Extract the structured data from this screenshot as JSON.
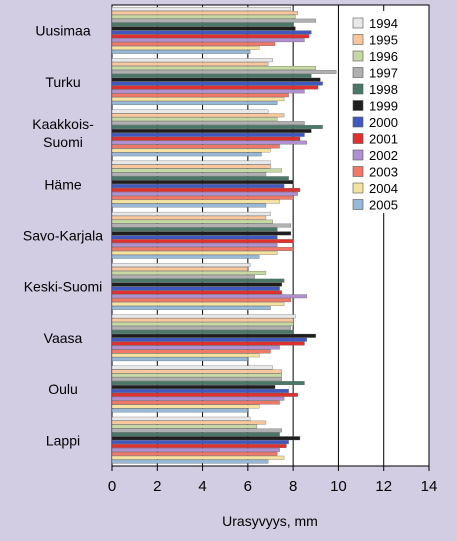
{
  "chart_data": {
    "type": "bar",
    "orientation": "horizontal",
    "title": "",
    "xlabel": "Urasyvyys, mm",
    "ylabel": "",
    "xlim": [
      0,
      14
    ],
    "xticks": [
      0,
      2,
      4,
      6,
      8,
      10,
      12,
      14
    ],
    "grid": "vertical",
    "legend_position": "right-inside",
    "categories": [
      "Uusimaa",
      "Turku",
      "Kaakkois-Suomi",
      "Häme",
      "Savo-Karjala",
      "Keski-Suomi",
      "Vaasa",
      "Oulu",
      "Lappi"
    ],
    "category_lines": [
      [
        "Uusimaa"
      ],
      [
        "Turku"
      ],
      [
        "Kaakkois-",
        "Suomi"
      ],
      [
        "Häme"
      ],
      [
        "Savo-Karjala"
      ],
      [
        "Keski-Suomi"
      ],
      [
        "Vaasa"
      ],
      [
        "Oulu"
      ],
      [
        "Lappi"
      ]
    ],
    "series": [
      {
        "name": "1994",
        "color": "#e8e8e8",
        "values": [
          7.9,
          7.1,
          6.9,
          7.0,
          7.0,
          6.1,
          8.1,
          7.1,
          6.1
        ]
      },
      {
        "name": "1995",
        "color": "#f9c79e",
        "values": [
          8.2,
          6.9,
          7.6,
          7.0,
          6.8,
          6.0,
          8.0,
          7.5,
          6.8
        ]
      },
      {
        "name": "1996",
        "color": "#c6d9a2",
        "values": [
          8.1,
          9.0,
          7.3,
          7.5,
          7.1,
          6.8,
          8.0,
          7.5,
          6.4
        ]
      },
      {
        "name": "1997",
        "color": "#b0b0b0",
        "values": [
          9.0,
          9.9,
          8.5,
          6.8,
          7.9,
          6.3,
          7.9,
          7.5,
          7.5
        ]
      },
      {
        "name": "1998",
        "color": "#4a7868",
        "values": [
          8.0,
          8.8,
          9.3,
          7.8,
          7.3,
          7.6,
          8.0,
          8.5,
          7.4
        ]
      },
      {
        "name": "1999",
        "color": "#1e1e1e",
        "values": [
          8.1,
          9.2,
          8.8,
          8.0,
          7.9,
          7.5,
          9.0,
          7.2,
          8.3
        ]
      },
      {
        "name": "2000",
        "color": "#4058c0",
        "values": [
          8.8,
          9.3,
          8.5,
          7.6,
          7.3,
          7.4,
          8.6,
          7.8,
          7.8
        ]
      },
      {
        "name": "2001",
        "color": "#e03030",
        "values": [
          8.7,
          9.1,
          8.3,
          8.3,
          8.0,
          7.5,
          8.5,
          8.2,
          7.7
        ]
      },
      {
        "name": "2002",
        "color": "#b090d0",
        "values": [
          8.5,
          8.5,
          8.6,
          8.2,
          7.3,
          8.6,
          7.4,
          7.6,
          7.4
        ]
      },
      {
        "name": "2003",
        "color": "#f07868",
        "values": [
          7.2,
          7.8,
          7.4,
          8.0,
          8.0,
          7.9,
          7.0,
          7.4,
          7.3
        ]
      },
      {
        "name": "2004",
        "color": "#f5e2a0",
        "values": [
          6.5,
          7.6,
          7.0,
          7.4,
          7.3,
          7.6,
          6.5,
          6.5,
          7.6
        ]
      },
      {
        "name": "2005",
        "color": "#98b8d8",
        "values": [
          6.1,
          7.3,
          6.6,
          6.8,
          6.5,
          7.0,
          6.0,
          6.0,
          6.9
        ]
      }
    ]
  }
}
